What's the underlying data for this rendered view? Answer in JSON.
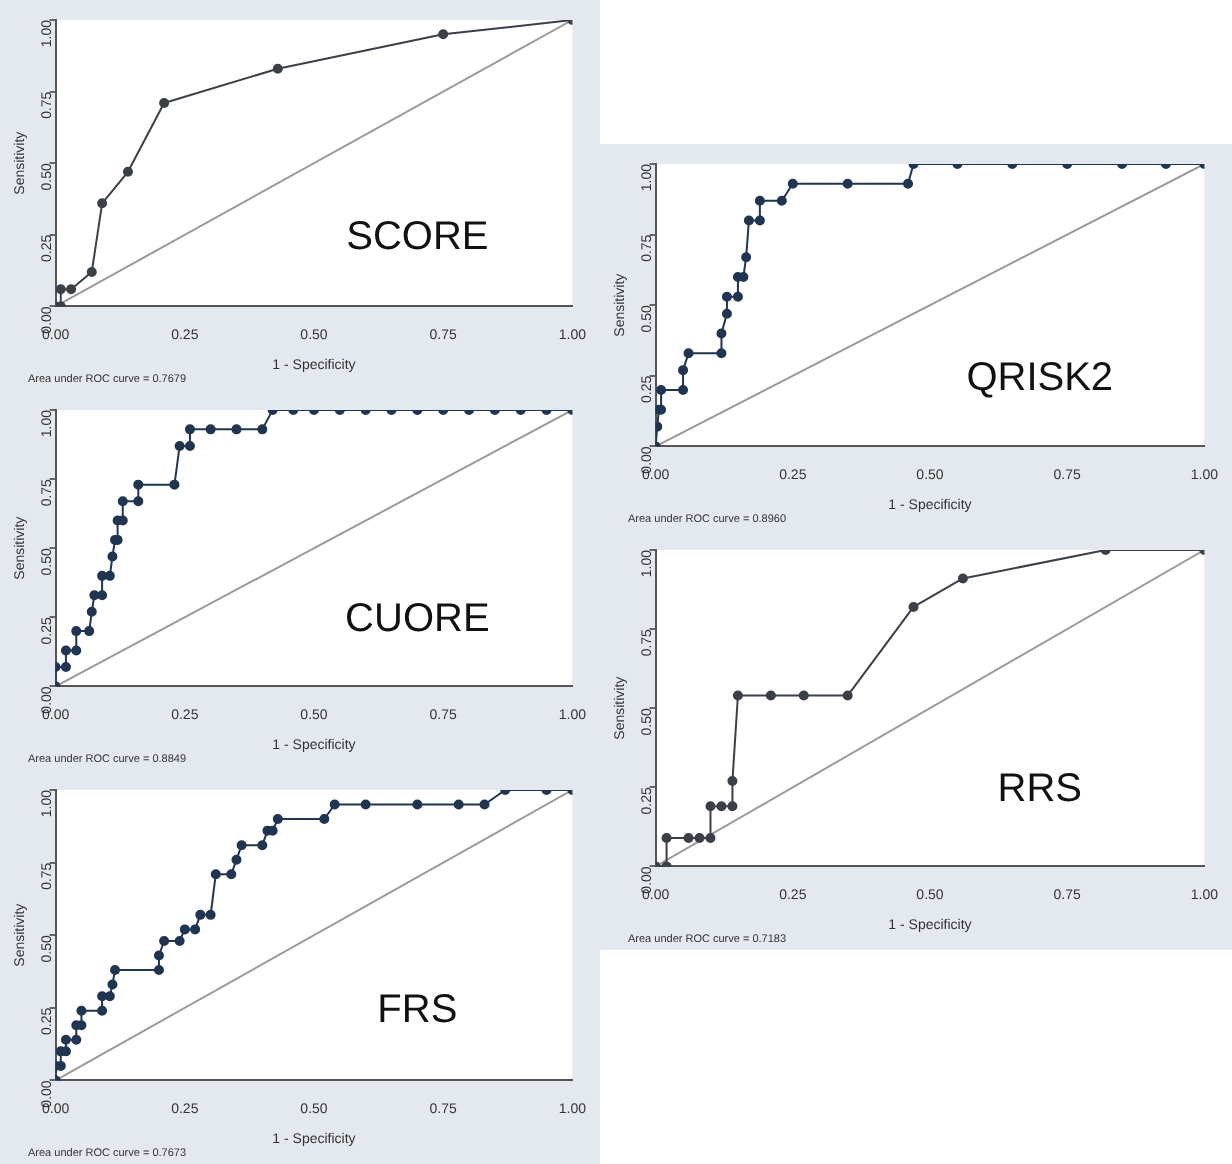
{
  "chart_data": [
    {
      "type": "line",
      "title": "SCORE",
      "xlabel": "1 - Specificity",
      "ylabel": "Sensitivity",
      "annotations": [
        "Area under ROC curve = 0.7679"
      ],
      "xlim": [
        0,
        1
      ],
      "ylim": [
        0,
        1
      ],
      "xticks": [
        {
          "value": 0,
          "label": "0.00"
        },
        {
          "value": 0.25,
          "label": "0.25"
        },
        {
          "value": 0.5,
          "label": "0.50"
        },
        {
          "value": 0.75,
          "label": "0.75"
        },
        {
          "value": 1,
          "label": "1.00"
        }
      ],
      "yticks": [
        {
          "value": 0,
          "label": "0.00"
        },
        {
          "value": 0.25,
          "label": "0.25"
        },
        {
          "value": 0.5,
          "label": "0.50"
        },
        {
          "value": 0.75,
          "label": "0.75"
        },
        {
          "value": 1,
          "label": "1.00"
        }
      ],
      "series": [
        {
          "color": "#3a3f48",
          "marker": "circle",
          "x": [
            0,
            0.01,
            0.01,
            0.03,
            0.07,
            0.09,
            0.14,
            0.21,
            0.43,
            0.75,
            1
          ],
          "values": [
            0,
            0,
            0.06,
            0.06,
            0.12,
            0.36,
            0.47,
            0.71,
            0.83,
            0.95,
            1
          ]
        },
        {
          "color": "#9a9a9a",
          "marker": "none",
          "x": [
            0,
            1
          ],
          "values": [
            0,
            1
          ]
        }
      ]
    },
    {
      "type": "line",
      "title": "QRISK2",
      "xlabel": "1 - Specificity",
      "ylabel": "Sensitivity",
      "annotations": [
        "Area under ROC curve = 0.8960"
      ],
      "xlim": [
        0,
        1
      ],
      "ylim": [
        0,
        1
      ],
      "xticks": [
        {
          "value": 0,
          "label": "0.00"
        },
        {
          "value": 0.25,
          "label": "0.25"
        },
        {
          "value": 0.5,
          "label": "0.50"
        },
        {
          "value": 0.75,
          "label": "0.75"
        },
        {
          "value": 1,
          "label": "1.00"
        }
      ],
      "yticks": [
        {
          "value": 0,
          "label": "0.00"
        },
        {
          "value": 0.25,
          "label": "0.25"
        },
        {
          "value": 0.5,
          "label": "0.50"
        },
        {
          "value": 0.75,
          "label": "0.75"
        },
        {
          "value": 1,
          "label": "1.00"
        }
      ],
      "series": [
        {
          "color": "#1f3552",
          "marker": "circle",
          "x": [
            0,
            0.003,
            0.006,
            0.01,
            0.01,
            0.05,
            0.05,
            0.06,
            0.12,
            0.12,
            0.13,
            0.13,
            0.15,
            0.15,
            0.16,
            0.165,
            0.17,
            0.19,
            0.19,
            0.23,
            0.25,
            0.35,
            0.46,
            0.47,
            0.55,
            0.65,
            0.75,
            0.85,
            0.93,
            1
          ],
          "values": [
            0,
            0.07,
            0.13,
            0.13,
            0.2,
            0.2,
            0.27,
            0.33,
            0.33,
            0.4,
            0.47,
            0.53,
            0.53,
            0.6,
            0.6,
            0.67,
            0.8,
            0.8,
            0.87,
            0.87,
            0.93,
            0.93,
            0.93,
            1,
            1,
            1,
            1,
            1,
            1,
            1
          ]
        },
        {
          "color": "#9a9a9a",
          "marker": "none",
          "x": [
            0,
            1
          ],
          "values": [
            0,
            1
          ]
        }
      ]
    },
    {
      "type": "line",
      "title": "CUORE",
      "xlabel": "1 - Specificity",
      "ylabel": "Sensitivity",
      "annotations": [
        "Area under ROC curve = 0.8849"
      ],
      "xlim": [
        0,
        1
      ],
      "ylim": [
        0,
        1
      ],
      "xticks": [
        {
          "value": 0,
          "label": "0.00"
        },
        {
          "value": 0.25,
          "label": "0.25"
        },
        {
          "value": 0.5,
          "label": "0.50"
        },
        {
          "value": 0.75,
          "label": "0.75"
        },
        {
          "value": 1,
          "label": "1.00"
        }
      ],
      "yticks": [
        {
          "value": 0,
          "label": "0.00"
        },
        {
          "value": 0.25,
          "label": "0.25"
        },
        {
          "value": 0.5,
          "label": "0.50"
        },
        {
          "value": 0.75,
          "label": "0.75"
        },
        {
          "value": 1,
          "label": "1.00"
        }
      ],
      "series": [
        {
          "color": "#1f3552",
          "marker": "circle",
          "x": [
            0,
            0,
            0.02,
            0.02,
            0.04,
            0.04,
            0.065,
            0.07,
            0.075,
            0.09,
            0.09,
            0.105,
            0.11,
            0.115,
            0.12,
            0.12,
            0.13,
            0.13,
            0.16,
            0.16,
            0.23,
            0.24,
            0.26,
            0.26,
            0.3,
            0.35,
            0.4,
            0.42,
            0.46,
            0.5,
            0.55,
            0.6,
            0.65,
            0.7,
            0.75,
            0.8,
            0.85,
            0.9,
            0.95,
            1
          ],
          "values": [
            0,
            0.07,
            0.07,
            0.13,
            0.13,
            0.2,
            0.2,
            0.27,
            0.33,
            0.33,
            0.4,
            0.4,
            0.47,
            0.53,
            0.53,
            0.6,
            0.6,
            0.67,
            0.67,
            0.73,
            0.73,
            0.87,
            0.87,
            0.93,
            0.93,
            0.93,
            0.93,
            1,
            1,
            1,
            1,
            1,
            1,
            1,
            1,
            1,
            1,
            1,
            1,
            1
          ]
        },
        {
          "color": "#9a9a9a",
          "marker": "none",
          "x": [
            0,
            1
          ],
          "values": [
            0,
            1
          ]
        }
      ]
    },
    {
      "type": "line",
      "title": "RRS",
      "xlabel": "1 - Specificity",
      "ylabel": "Sensitivity",
      "annotations": [
        "Area under ROC curve = 0.7183"
      ],
      "xlim": [
        0,
        1
      ],
      "ylim": [
        0,
        1
      ],
      "xticks": [
        {
          "value": 0,
          "label": "0.00"
        },
        {
          "value": 0.25,
          "label": "0.25"
        },
        {
          "value": 0.5,
          "label": "0.50"
        },
        {
          "value": 0.75,
          "label": "0.75"
        },
        {
          "value": 1,
          "label": "1.00"
        }
      ],
      "yticks": [
        {
          "value": 0,
          "label": "0.00"
        },
        {
          "value": 0.25,
          "label": "0.25"
        },
        {
          "value": 0.5,
          "label": "0.50"
        },
        {
          "value": 0.75,
          "label": "0.75"
        },
        {
          "value": 1,
          "label": "1.00"
        }
      ],
      "series": [
        {
          "color": "#3a3f48",
          "marker": "circle",
          "x": [
            0,
            0.02,
            0.02,
            0.06,
            0.08,
            0.1,
            0.1,
            0.12,
            0.14,
            0.14,
            0.15,
            0.21,
            0.27,
            0.35,
            0.47,
            0.56,
            0.82,
            1
          ],
          "values": [
            0,
            0,
            0.09,
            0.09,
            0.09,
            0.09,
            0.19,
            0.19,
            0.19,
            0.27,
            0.54,
            0.54,
            0.54,
            0.54,
            0.82,
            0.91,
            1,
            1
          ]
        },
        {
          "color": "#9a9a9a",
          "marker": "none",
          "x": [
            0,
            1
          ],
          "values": [
            0,
            1
          ]
        }
      ]
    },
    {
      "type": "line",
      "title": "FRS",
      "xlabel": "1 - Specificity",
      "ylabel": "Sensitivity",
      "annotations": [
        "Area under ROC curve = 0.7673"
      ],
      "xlim": [
        0,
        1
      ],
      "ylim": [
        0,
        1
      ],
      "xticks": [
        {
          "value": 0,
          "label": "0.00"
        },
        {
          "value": 0.25,
          "label": "0.25"
        },
        {
          "value": 0.5,
          "label": "0.50"
        },
        {
          "value": 0.75,
          "label": "0.75"
        },
        {
          "value": 1,
          "label": "1.00"
        }
      ],
      "yticks": [
        {
          "value": 0,
          "label": "0.00"
        },
        {
          "value": 0.25,
          "label": "0.25"
        },
        {
          "value": 0.5,
          "label": "0.50"
        },
        {
          "value": 0.75,
          "label": "0.75"
        },
        {
          "value": 1,
          "label": "1.00"
        }
      ],
      "series": [
        {
          "color": "#1f3552",
          "marker": "circle",
          "x": [
            0,
            0,
            0.01,
            0.01,
            0.02,
            0.02,
            0.04,
            0.04,
            0.05,
            0.05,
            0.09,
            0.09,
            0.105,
            0.11,
            0.115,
            0.2,
            0.2,
            0.21,
            0.24,
            0.25,
            0.27,
            0.28,
            0.3,
            0.31,
            0.34,
            0.35,
            0.36,
            0.4,
            0.41,
            0.42,
            0.43,
            0.52,
            0.54,
            0.6,
            0.7,
            0.78,
            0.83,
            0.87,
            0.95,
            1
          ],
          "values": [
            0,
            0.05,
            0.05,
            0.1,
            0.1,
            0.14,
            0.14,
            0.19,
            0.19,
            0.24,
            0.24,
            0.29,
            0.29,
            0.33,
            0.38,
            0.38,
            0.43,
            0.48,
            0.48,
            0.52,
            0.52,
            0.57,
            0.57,
            0.71,
            0.71,
            0.76,
            0.81,
            0.81,
            0.86,
            0.86,
            0.9,
            0.9,
            0.95,
            0.95,
            0.95,
            0.95,
            0.95,
            1,
            1,
            1
          ]
        },
        {
          "color": "#9a9a9a",
          "marker": "none",
          "x": [
            0,
            1
          ],
          "values": [
            0,
            1
          ]
        }
      ]
    }
  ]
}
